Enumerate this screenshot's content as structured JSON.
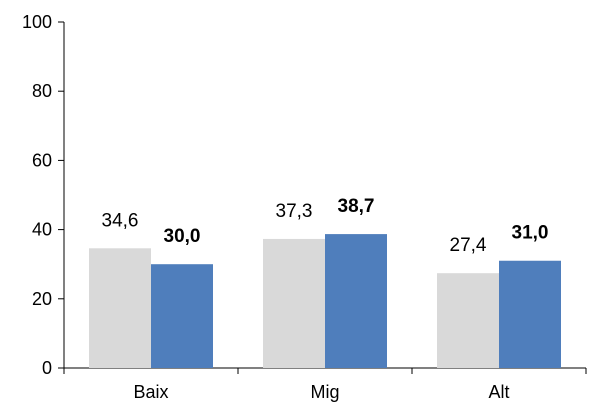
{
  "chart_data": {
    "type": "bar",
    "categories": [
      "Baix",
      "Mig",
      "Alt"
    ],
    "series": [
      {
        "values": [
          34.6,
          37.3,
          27.4
        ],
        "labels": [
          "34,6",
          "37,3",
          "27,4"
        ],
        "color": "#d9d9d9",
        "label_bold": false
      },
      {
        "values": [
          30.0,
          38.7,
          31.0
        ],
        "labels": [
          "30,0",
          "38,7",
          "31,0"
        ],
        "color": "#4f7ebc",
        "label_bold": true
      }
    ],
    "yticks": [
      0,
      20,
      40,
      60,
      80,
      100
    ],
    "ylim": [
      0,
      100
    ],
    "title": "",
    "xlabel": "",
    "ylabel": "",
    "grid": false,
    "legend": "none",
    "axis_color": "#000000"
  }
}
